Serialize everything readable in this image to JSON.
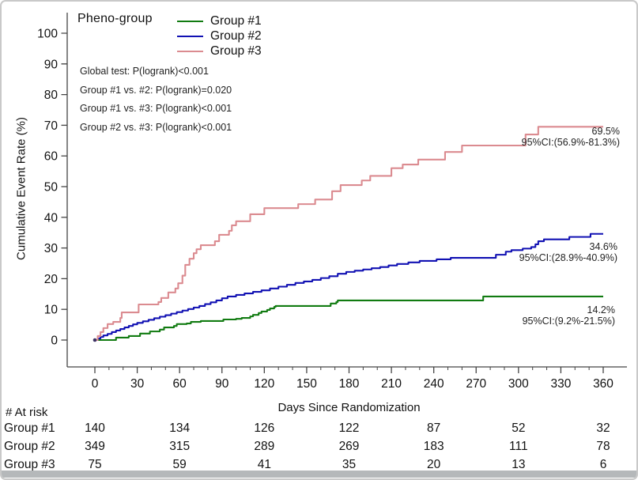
{
  "figure": {
    "legend": {
      "title": "Pheno-group",
      "entries": [
        {
          "label": "Group #1",
          "color": "#117B11"
        },
        {
          "label": "Group #2",
          "color": "#1111B3"
        },
        {
          "label": "Group #3",
          "color": "#DB8B90"
        }
      ]
    },
    "annotations": [
      "Global test: P(logrank)<0.001",
      "Group #1 vs. #2: P(logrank)=0.020",
      "Group #1 vs. #3: P(logrank)<0.001",
      "Group #2 vs. #3: P(logrank)<0.001"
    ],
    "end_labels": [
      {
        "series": "Group #3",
        "value": "69.5%",
        "ci": "95%CI:(56.9%-81.3%)"
      },
      {
        "series": "Group #2",
        "value": "34.6%",
        "ci": "95%CI:(28.9%-40.9%)"
      },
      {
        "series": "Group #1",
        "value": "14.2%",
        "ci": "95%CI:(9.2%-21.5%)"
      }
    ]
  },
  "at_risk": {
    "header": "# At risk",
    "days": [
      0,
      60,
      120,
      180,
      240,
      300,
      360
    ],
    "rows": [
      {
        "label": "Group #1",
        "values": [
          140,
          134,
          126,
          122,
          87,
          52,
          32
        ]
      },
      {
        "label": "Group #2",
        "values": [
          349,
          315,
          289,
          269,
          183,
          111,
          78
        ]
      },
      {
        "label": "Group #3",
        "values": [
          75,
          59,
          41,
          35,
          20,
          13,
          6
        ]
      }
    ]
  },
  "chart_data": {
    "type": "line",
    "step": true,
    "title": "",
    "xlabel": "Days Since Randomization",
    "ylabel": "Cumulative Event Rate (%)",
    "xlim": [
      0,
      360
    ],
    "ylim": [
      0,
      100
    ],
    "xticks": [
      0,
      30,
      60,
      90,
      120,
      150,
      180,
      210,
      240,
      270,
      300,
      330,
      360
    ],
    "xminor_step": 10,
    "yticks": [
      0,
      10,
      20,
      30,
      40,
      50,
      60,
      70,
      80,
      90,
      100
    ],
    "grid": false,
    "legend_position": "top-left-inside",
    "series": [
      {
        "name": "Group #1",
        "color": "#117B11",
        "final_value": 14.2,
        "ci_95": [
          9.2,
          21.5
        ],
        "points": [
          [
            0,
            0
          ],
          [
            15,
            0.8
          ],
          [
            24,
            1.3
          ],
          [
            32,
            2.1
          ],
          [
            39,
            2.8
          ],
          [
            46,
            3.4
          ],
          [
            49,
            4.1
          ],
          [
            56,
            4.6
          ],
          [
            58,
            5.2
          ],
          [
            65,
            5.4
          ],
          [
            68,
            5.9
          ],
          [
            75,
            6.2
          ],
          [
            91,
            6.7
          ],
          [
            100,
            6.9
          ],
          [
            104,
            7.2
          ],
          [
            110,
            7.7
          ],
          [
            112,
            8.2
          ],
          [
            116,
            8.8
          ],
          [
            118,
            9.3
          ],
          [
            122,
            9.8
          ],
          [
            124,
            10.3
          ],
          [
            127,
            10.8
          ],
          [
            128,
            11.1
          ],
          [
            167,
            11.9
          ],
          [
            171,
            12.4
          ],
          [
            172,
            12.9
          ],
          [
            275,
            14.2
          ],
          [
            360,
            14.2
          ]
        ]
      },
      {
        "name": "Group #2",
        "color": "#1111B3",
        "final_value": 34.6,
        "ci_95": [
          28.9,
          40.9
        ],
        "points": [
          [
            0,
            0
          ],
          [
            2,
            0.5
          ],
          [
            4,
            1.0
          ],
          [
            6,
            1.5
          ],
          [
            9,
            2.0
          ],
          [
            12,
            2.6
          ],
          [
            15,
            3.1
          ],
          [
            18,
            3.6
          ],
          [
            21,
            4.1
          ],
          [
            24,
            4.6
          ],
          [
            27,
            5.1
          ],
          [
            30,
            5.6
          ],
          [
            34,
            6.1
          ],
          [
            38,
            6.6
          ],
          [
            42,
            7.1
          ],
          [
            46,
            7.6
          ],
          [
            50,
            8.1
          ],
          [
            54,
            8.6
          ],
          [
            58,
            9.1
          ],
          [
            62,
            9.6
          ],
          [
            66,
            10.1
          ],
          [
            70,
            10.6
          ],
          [
            74,
            11.1
          ],
          [
            78,
            11.7
          ],
          [
            82,
            12.3
          ],
          [
            86,
            12.9
          ],
          [
            90,
            13.6
          ],
          [
            94,
            14.2
          ],
          [
            100,
            14.7
          ],
          [
            106,
            15.2
          ],
          [
            112,
            15.7
          ],
          [
            118,
            16.2
          ],
          [
            124,
            16.8
          ],
          [
            130,
            17.4
          ],
          [
            136,
            18.0
          ],
          [
            142,
            18.6
          ],
          [
            148,
            19.1
          ],
          [
            154,
            19.6
          ],
          [
            160,
            20.2
          ],
          [
            166,
            20.8
          ],
          [
            172,
            21.6
          ],
          [
            178,
            22.2
          ],
          [
            184,
            22.6
          ],
          [
            190,
            23.0
          ],
          [
            196,
            23.4
          ],
          [
            202,
            23.8
          ],
          [
            208,
            24.3
          ],
          [
            214,
            24.8
          ],
          [
            222,
            25.3
          ],
          [
            230,
            25.8
          ],
          [
            242,
            26.3
          ],
          [
            252,
            26.8
          ],
          [
            284,
            27.8
          ],
          [
            291,
            28.8
          ],
          [
            295,
            29.3
          ],
          [
            303,
            29.8
          ],
          [
            309,
            30.3
          ],
          [
            312,
            31.2
          ],
          [
            314,
            32.2
          ],
          [
            318,
            32.8
          ],
          [
            336,
            33.6
          ],
          [
            351,
            34.6
          ],
          [
            360,
            34.6
          ]
        ]
      },
      {
        "name": "Group #3",
        "color": "#DB8B90",
        "final_value": 69.5,
        "ci_95": [
          56.9,
          81.3
        ],
        "points": [
          [
            0,
            0
          ],
          [
            2,
            1.3
          ],
          [
            4,
            2.6
          ],
          [
            6,
            3.9
          ],
          [
            9,
            5.2
          ],
          [
            13,
            5.9
          ],
          [
            18,
            7.2
          ],
          [
            19,
            9.0
          ],
          [
            31,
            11.6
          ],
          [
            45,
            12.4
          ],
          [
            47,
            13.7
          ],
          [
            52,
            15.5
          ],
          [
            57,
            16.8
          ],
          [
            59,
            18.5
          ],
          [
            62,
            21.0
          ],
          [
            64,
            24.5
          ],
          [
            67,
            26.5
          ],
          [
            70,
            28.3
          ],
          [
            72,
            29.6
          ],
          [
            75,
            30.9
          ],
          [
            85,
            32.2
          ],
          [
            88,
            34.3
          ],
          [
            95,
            35.6
          ],
          [
            97,
            37.4
          ],
          [
            100,
            38.7
          ],
          [
            110,
            41.0
          ],
          [
            120,
            43.0
          ],
          [
            144,
            44.3
          ],
          [
            156,
            45.8
          ],
          [
            168,
            48.5
          ],
          [
            174,
            50.5
          ],
          [
            189,
            52.0
          ],
          [
            195,
            53.5
          ],
          [
            210,
            56.0
          ],
          [
            218,
            57.2
          ],
          [
            229,
            58.8
          ],
          [
            248,
            61.3
          ],
          [
            260,
            63.4
          ],
          [
            305,
            67.0
          ],
          [
            314,
            69.5
          ],
          [
            360,
            69.5
          ]
        ]
      }
    ]
  }
}
